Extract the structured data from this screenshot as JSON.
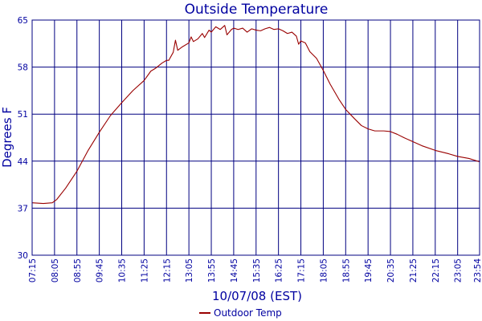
{
  "chart_data": {
    "type": "line",
    "title": "Outside Temperature",
    "xlabel": "10/07/08 (EST)",
    "ylabel": "Degrees F",
    "ylim": [
      30,
      65
    ],
    "y_ticks": [
      30,
      37,
      44,
      51,
      58,
      65
    ],
    "x_tick_labels": [
      "07:15",
      "08:05",
      "08:55",
      "09:45",
      "10:35",
      "11:25",
      "12:15",
      "13:05",
      "13:55",
      "14:45",
      "15:35",
      "16:25",
      "17:15",
      "18:05",
      "18:55",
      "19:45",
      "20:35",
      "21:25",
      "22:15",
      "23:05",
      "23:54"
    ],
    "grid": true,
    "legend": {
      "position": "bottom-center"
    },
    "colors": {
      "plot_border": "#000080",
      "grid": "#000080",
      "text": "#0000a0",
      "series": "#990000"
    },
    "series": [
      {
        "name": "Outdoor Temp",
        "x": [
          "07:15",
          "07:40",
          "08:00",
          "08:10",
          "08:30",
          "08:55",
          "09:20",
          "09:45",
          "10:10",
          "10:35",
          "11:00",
          "11:25",
          "11:40",
          "11:50",
          "12:05",
          "12:15",
          "12:20",
          "12:30",
          "12:35",
          "12:40",
          "12:50",
          "13:05",
          "13:10",
          "13:15",
          "13:25",
          "13:35",
          "13:40",
          "13:50",
          "13:55",
          "14:05",
          "14:15",
          "14:25",
          "14:30",
          "14:40",
          "14:45",
          "14:55",
          "15:05",
          "15:15",
          "15:25",
          "15:35",
          "15:45",
          "15:55",
          "16:05",
          "16:15",
          "16:25",
          "16:35",
          "16:45",
          "16:55",
          "17:05",
          "17:10",
          "17:15",
          "17:25",
          "17:35",
          "17:50",
          "18:05",
          "18:20",
          "18:40",
          "18:55",
          "19:15",
          "19:30",
          "19:45",
          "20:00",
          "20:20",
          "20:35",
          "20:50",
          "21:05",
          "21:25",
          "21:45",
          "22:15",
          "22:45",
          "23:05",
          "23:30",
          "23:54"
        ],
        "y": [
          37.8,
          37.7,
          37.8,
          38.3,
          40.0,
          42.5,
          45.6,
          48.3,
          50.8,
          52.7,
          54.5,
          56.0,
          57.4,
          57.8,
          58.6,
          59.0,
          59.0,
          60.2,
          62.0,
          60.5,
          61.0,
          61.6,
          62.5,
          61.8,
          62.2,
          63.0,
          62.4,
          63.5,
          63.2,
          64.0,
          63.6,
          64.2,
          62.8,
          63.6,
          63.8,
          63.6,
          63.8,
          63.2,
          63.7,
          63.5,
          63.4,
          63.7,
          63.9,
          63.6,
          63.7,
          63.4,
          63.0,
          63.2,
          62.6,
          61.4,
          61.9,
          61.6,
          60.3,
          59.3,
          57.5,
          55.5,
          53.2,
          51.7,
          50.3,
          49.3,
          48.8,
          48.5,
          48.5,
          48.4,
          48.0,
          47.5,
          46.9,
          46.3,
          45.6,
          45.1,
          44.7,
          44.4,
          43.9
        ]
      }
    ]
  }
}
